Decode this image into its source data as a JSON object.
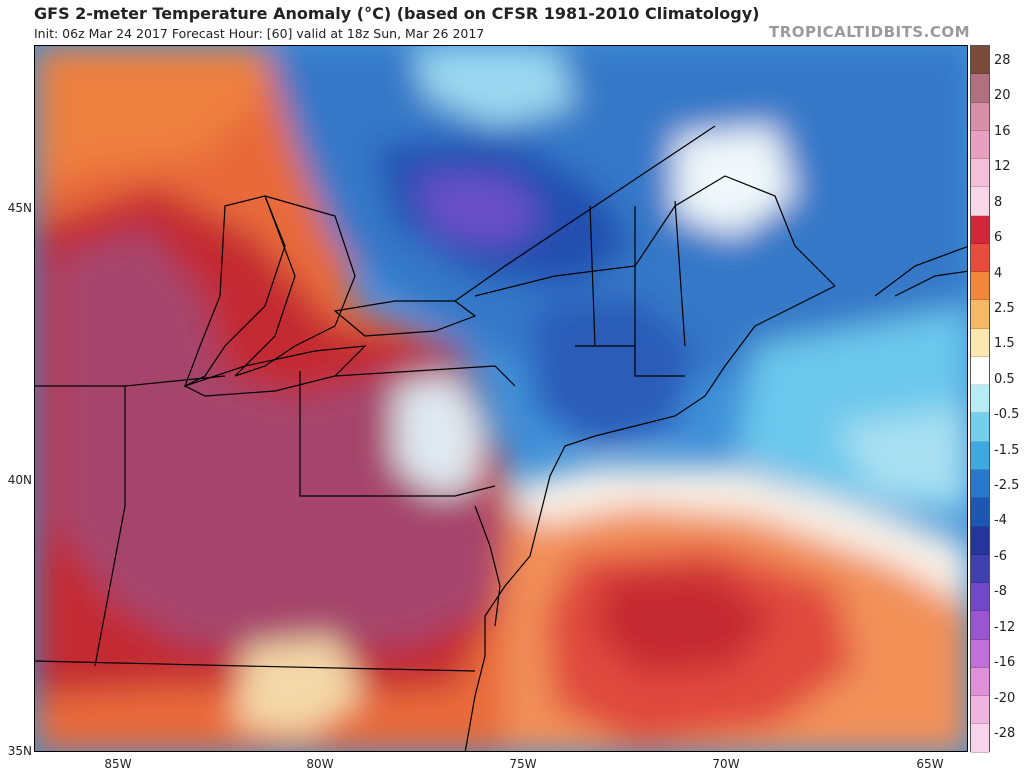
{
  "header": {
    "title": "GFS 2-meter Temperature Anomaly (°C) (based on CFSR 1981-2010 Climatology)",
    "subtitle": "Init: 06z Mar 24 2017   Forecast Hour: [60]   valid at 18z Sun, Mar 26 2017",
    "site": "TROPICALTIDBITS.COM"
  },
  "map": {
    "latitude_labels": [
      "45N",
      "40N",
      "35N"
    ],
    "longitude_labels": [
      "85W",
      "80W",
      "75W",
      "70W",
      "65W"
    ],
    "colors": {
      "deep_red": "#b5202a",
      "red": "#d84040",
      "magenta_red": "#a8456c",
      "orange": "#ee7a3a",
      "light_orange": "#f4b07a",
      "pale": "#f8e2c0",
      "white": "#ffffff",
      "light_blue": "#a8def0",
      "cyan": "#5fc8e8",
      "blue": "#3a8ed8",
      "dark_blue": "#2060b0",
      "navy": "#1d3f9a",
      "purple": "#6a4fc8"
    }
  },
  "colorbar": {
    "labels": [
      "28",
      "20",
      "16",
      "12",
      "8",
      "6",
      "4",
      "2.5",
      "1.5",
      "0.5",
      "-0.5",
      "-1.5",
      "-2.5",
      "-4",
      "-6",
      "-8",
      "-12",
      "-16",
      "-20",
      "-28"
    ],
    "colors": [
      "#7a4a3a",
      "#b07080",
      "#d890a8",
      "#e8a0c0",
      "#f4c0d8",
      "#f8d8e8",
      "#d02838",
      "#e84c3c",
      "#f2863a",
      "#f5b865",
      "#fbe8b0",
      "#ffffff",
      "#b8ecf4",
      "#72d0ec",
      "#3ea8e0",
      "#2a78cc",
      "#1e56b4",
      "#24369a",
      "#4040b0",
      "#7048c8",
      "#9a56d0",
      "#c070d8",
      "#e090d8",
      "#f0b4e0",
      "#f8d4ec"
    ]
  }
}
